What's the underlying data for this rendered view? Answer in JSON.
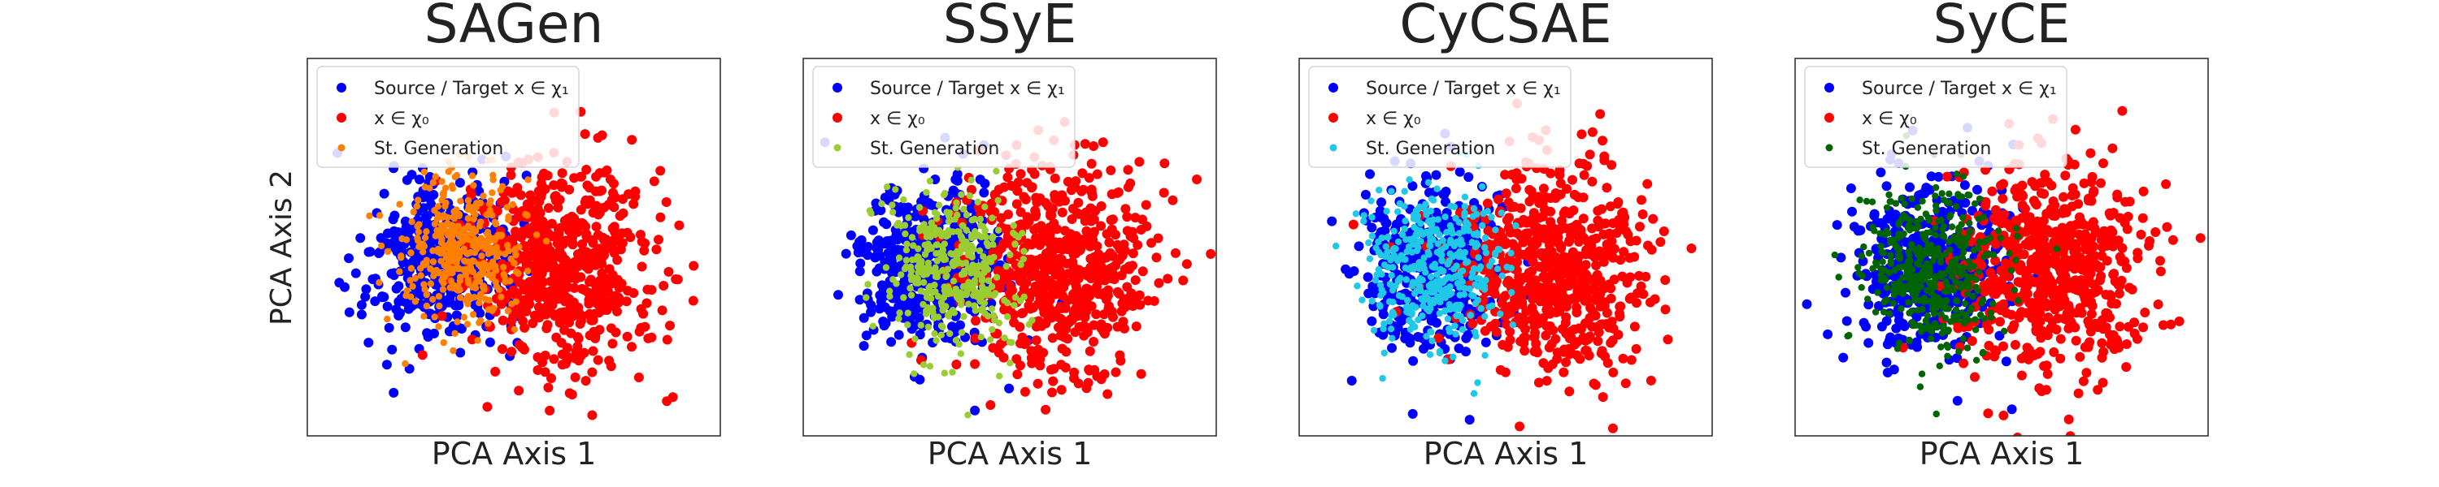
{
  "figure": {
    "shared_ylabel": "PCA Axis 2"
  },
  "chart_data": [
    {
      "type": "scatter",
      "title": "SAGen",
      "xlabel": "PCA Axis 1",
      "ylabel": "PCA Axis 2",
      "grid": false,
      "legend_position": "top-left",
      "series": [
        {
          "name": "Source / Target x ∈ χ₁",
          "color": "#0000ff",
          "description": "class-1 cluster, left",
          "center": [
            -1.5,
            0.0
          ],
          "spread": [
            0.75,
            0.85
          ],
          "count": 420
        },
        {
          "name": "x ∈ χ₀",
          "color": "#ff0000",
          "description": "class-0 cluster, right",
          "center": [
            1.0,
            -0.2
          ],
          "spread": [
            0.95,
            1.1
          ],
          "count": 620
        },
        {
          "name": "St. Generation",
          "color": "#ff8000",
          "description": "generated samples",
          "center": [
            -1.0,
            0.3
          ],
          "spread": [
            0.6,
            0.75
          ],
          "count": 380
        }
      ]
    },
    {
      "type": "scatter",
      "title": "SSyE",
      "xlabel": "PCA Axis 1",
      "ylabel": "",
      "grid": false,
      "legend_position": "top-left",
      "series": [
        {
          "name": "Source / Target x ∈ χ₁",
          "color": "#0000ff",
          "center": [
            -1.6,
            -0.1
          ],
          "spread": [
            0.75,
            0.85
          ],
          "count": 420
        },
        {
          "name": "x ∈ χ₀",
          "color": "#ff0000",
          "center": [
            1.0,
            -0.2
          ],
          "spread": [
            0.95,
            1.1
          ],
          "count": 620
        },
        {
          "name": "St. Generation",
          "color": "#9acd32",
          "center": [
            -1.1,
            -0.2
          ],
          "spread": [
            0.65,
            0.8
          ],
          "count": 380
        }
      ]
    },
    {
      "type": "scatter",
      "title": "CyCSAE",
      "xlabel": "PCA Axis 1",
      "ylabel": "",
      "grid": false,
      "legend_position": "top-left",
      "series": [
        {
          "name": "Source / Target x ∈ χ₁",
          "color": "#0000ff",
          "center": [
            -1.5,
            -0.1
          ],
          "spread": [
            0.75,
            0.85
          ],
          "count": 420
        },
        {
          "name": "x ∈ χ₀",
          "color": "#ff0000",
          "center": [
            1.0,
            -0.2
          ],
          "spread": [
            0.95,
            1.1
          ],
          "count": 620
        },
        {
          "name": "St. Generation",
          "color": "#1ec8e6",
          "center": [
            -1.5,
            -0.1
          ],
          "spread": [
            0.72,
            0.82
          ],
          "count": 400
        }
      ]
    },
    {
      "type": "scatter",
      "title": "SyCE",
      "xlabel": "PCA Axis 1",
      "ylabel": "",
      "grid": false,
      "legend_position": "top-left",
      "series": [
        {
          "name": "Source / Target x ∈ χ₁",
          "color": "#0000ff",
          "center": [
            -1.5,
            -0.1
          ],
          "spread": [
            0.75,
            0.85
          ],
          "count": 420
        },
        {
          "name": "x ∈ χ₀",
          "color": "#ff0000",
          "center": [
            1.0,
            -0.2
          ],
          "spread": [
            0.95,
            1.1
          ],
          "count": 620
        },
        {
          "name": "St. Generation",
          "color": "#006400",
          "center": [
            -1.4,
            -0.1
          ],
          "spread": [
            0.7,
            0.8
          ],
          "count": 420
        }
      ]
    }
  ]
}
